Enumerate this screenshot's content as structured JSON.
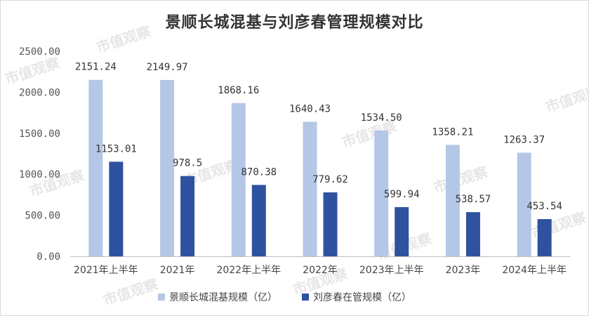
{
  "chart_data": {
    "type": "bar",
    "title": "景顺长城混基与刘彦春管理规模对比",
    "xlabel": "",
    "ylabel": "",
    "categories": [
      "2021年上半年",
      "2021年",
      "2022年上半年",
      "2022年",
      "2023年上半年",
      "2023年",
      "2024年上半年"
    ],
    "series": [
      {
        "name": "景顺长城混基规模（亿）",
        "color": "#b4c7e7",
        "values": [
          2151.24,
          2149.97,
          1868.16,
          1640.43,
          1534.5,
          1358.21,
          1263.37
        ],
        "labels": [
          "2151.24",
          "2149.97",
          "1868.16",
          "1640.43",
          "1534.50",
          "1358.21",
          "1263.37"
        ]
      },
      {
        "name": "刘彦春在管规模（亿）",
        "color": "#2f52a0",
        "values": [
          1153.01,
          978.5,
          870.38,
          779.62,
          599.94,
          538.57,
          453.54
        ],
        "labels": [
          "1153.01",
          "978.5",
          "870.38",
          "779.62",
          "599.94",
          "538.57",
          "453.54"
        ]
      }
    ],
    "ylim": [
      0,
      2500
    ],
    "yticks": [
      "0.00",
      "500.00",
      "1000.00",
      "1500.00",
      "2000.00",
      "2500.00"
    ],
    "grid": false,
    "legend": "bottom"
  },
  "watermark": {
    "text": "市值观察"
  }
}
